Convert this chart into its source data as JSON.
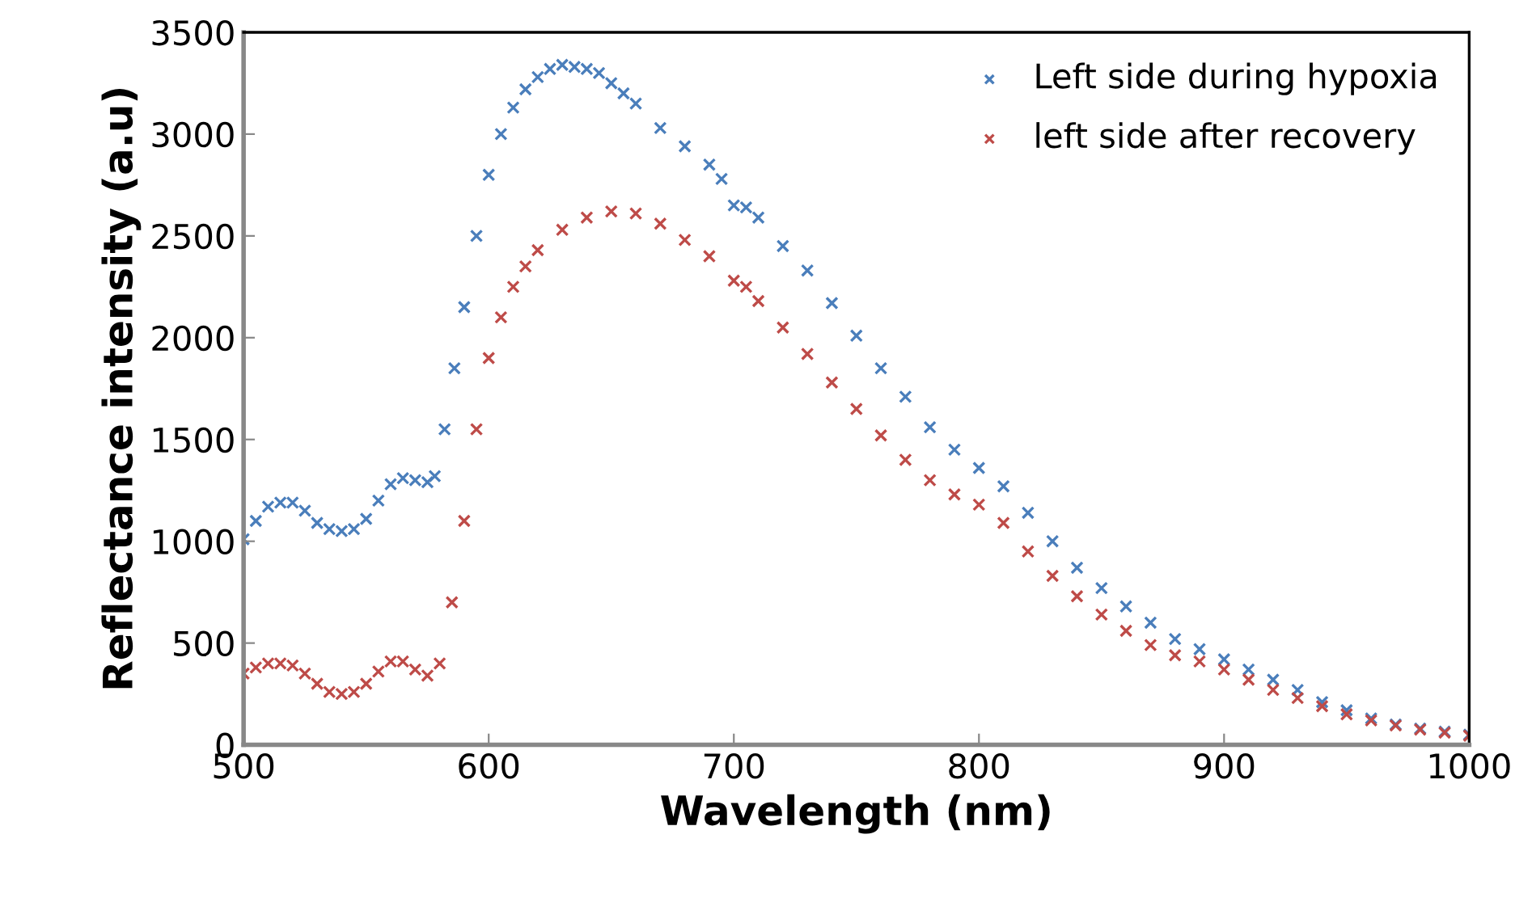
{
  "chart_data": {
    "type": "scatter",
    "xlabel": "Wavelength (nm)",
    "ylabel": "Reflectance intensity (a.u)",
    "xlim": [
      500,
      1000
    ],
    "xticks": [
      500,
      600,
      700,
      800,
      900,
      1000
    ],
    "ylim": [
      0,
      3500
    ],
    "yticks": [
      0,
      500,
      1000,
      1500,
      2000,
      2500,
      3000,
      3500
    ],
    "grid": false,
    "legend": "top right",
    "marker": "cross",
    "series": [
      {
        "name": "Left side during hypoxia",
        "color": "#4a7ebb",
        "x": [
          500,
          505,
          510,
          515,
          520,
          525,
          530,
          535,
          540,
          545,
          550,
          555,
          560,
          565,
          570,
          575,
          578,
          582,
          586,
          590,
          595,
          600,
          605,
          610,
          615,
          620,
          625,
          630,
          635,
          640,
          645,
          650,
          655,
          660,
          670,
          680,
          690,
          695,
          700,
          705,
          710,
          720,
          730,
          740,
          750,
          760,
          770,
          780,
          790,
          800,
          810,
          820,
          830,
          840,
          850,
          860,
          870,
          880,
          890,
          900,
          910,
          920,
          930,
          940,
          950,
          960,
          970,
          980,
          990,
          1000
        ],
        "values": [
          1010,
          1100,
          1170,
          1190,
          1190,
          1150,
          1090,
          1060,
          1050,
          1060,
          1110,
          1200,
          1280,
          1310,
          1300,
          1290,
          1320,
          1550,
          1850,
          2150,
          2500,
          2800,
          3000,
          3130,
          3220,
          3280,
          3320,
          3340,
          3330,
          3320,
          3300,
          3250,
          3200,
          3150,
          3030,
          2940,
          2850,
          2780,
          2650,
          2640,
          2590,
          2450,
          2330,
          2170,
          2010,
          1850,
          1710,
          1560,
          1450,
          1360,
          1270,
          1140,
          1000,
          870,
          770,
          680,
          600,
          520,
          470,
          420,
          370,
          320,
          270,
          210,
          170,
          130,
          100,
          80,
          65,
          50
        ]
      },
      {
        "name": "left side after recovery",
        "color": "#be4b48",
        "x": [
          500,
          505,
          510,
          515,
          520,
          525,
          530,
          535,
          540,
          545,
          550,
          555,
          560,
          565,
          570,
          575,
          580,
          585,
          590,
          595,
          600,
          605,
          610,
          615,
          620,
          630,
          640,
          650,
          660,
          670,
          680,
          690,
          700,
          705,
          710,
          720,
          730,
          740,
          750,
          760,
          770,
          780,
          790,
          800,
          810,
          820,
          830,
          840,
          850,
          860,
          870,
          880,
          890,
          900,
          910,
          920,
          930,
          940,
          950,
          960,
          970,
          980,
          990,
          1000
        ],
        "values": [
          350,
          380,
          400,
          400,
          390,
          350,
          300,
          260,
          250,
          260,
          300,
          360,
          410,
          410,
          370,
          340,
          400,
          700,
          1100,
          1550,
          1900,
          2100,
          2250,
          2350,
          2430,
          2530,
          2590,
          2620,
          2610,
          2560,
          2480,
          2400,
          2280,
          2250,
          2180,
          2050,
          1920,
          1780,
          1650,
          1520,
          1400,
          1300,
          1230,
          1180,
          1090,
          950,
          830,
          730,
          640,
          560,
          490,
          440,
          410,
          370,
          320,
          270,
          230,
          190,
          150,
          120,
          95,
          75,
          60,
          45
        ]
      }
    ]
  }
}
